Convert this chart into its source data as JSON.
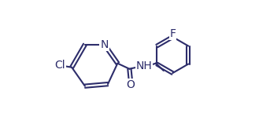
{
  "bond_color": "#2d2d6b",
  "bg_color": "#ffffff",
  "line_width": 1.5,
  "figsize": [
    3.29,
    1.77
  ],
  "dpi": 100,
  "labels": {
    "N": "N",
    "Cl": "Cl",
    "O": "O",
    "NH": "NH",
    "F": "F"
  },
  "label_fontsize": 10,
  "label_color": "#2d2d6b"
}
